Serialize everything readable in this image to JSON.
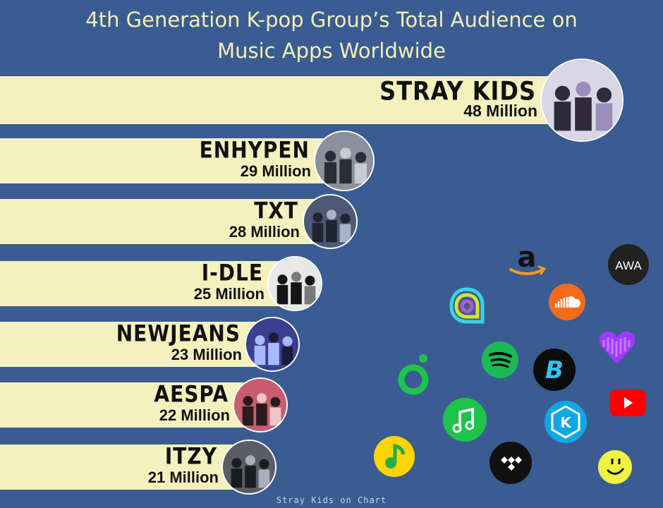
{
  "title_line1": "4th Generation K-pop Group’s Total Audience on",
  "title_line2": "Music Apps Worldwide",
  "footer": "Stray Kids on Chart",
  "colors": {
    "background": "#3A5C93",
    "bar": "#F5F1BE",
    "title": "#F3EFB8"
  },
  "chart_data": {
    "type": "bar",
    "orientation": "horizontal",
    "title": "4th Generation K-pop Group’s Total Audience on Music Apps Worldwide",
    "unit": "Million",
    "categories": [
      "STRAY KIDS",
      "ENHYPEN",
      "TXT",
      "I-DLE",
      "NEWJEANS",
      "AESPA",
      "ITZY"
    ],
    "values": [
      48,
      29,
      28,
      25,
      23,
      22,
      21
    ],
    "value_labels": [
      "48 Million",
      "29 Million",
      "28 Million",
      "25 Million",
      "23 Million",
      "22 Million",
      "21 Million"
    ],
    "xlim": [
      0,
      48
    ],
    "grid": false
  },
  "app_icons": [
    "amazon-music-icon",
    "awa-icon",
    "anghami-icon",
    "soundcloud-icon",
    "deezer-icon",
    "spotify-icon",
    "melon-icon",
    "boomplay-icon",
    "youtube-music-icon",
    "kkbox-icon",
    "apple-music-icon",
    "qq-music-icon",
    "tidal-icon",
    "yandex-icon"
  ]
}
